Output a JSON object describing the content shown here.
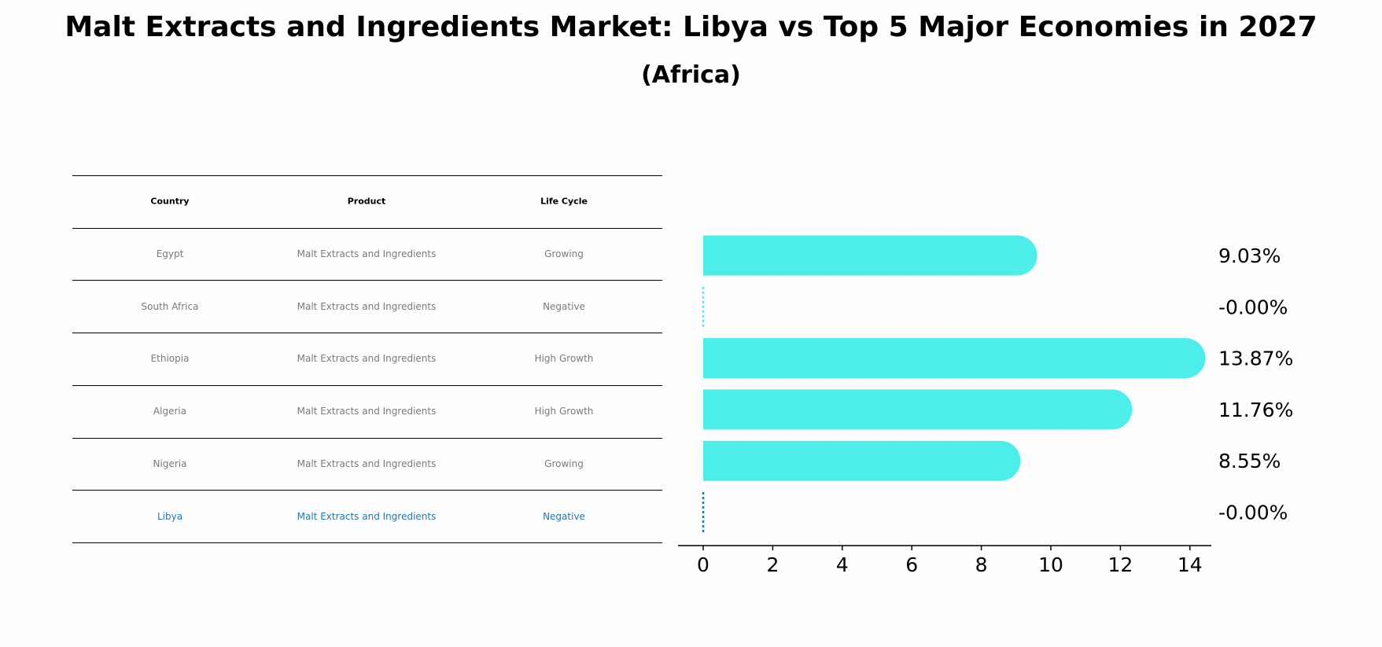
{
  "title": "Malt Extracts and Ingredients Market: Libya vs Top 5 Major Economies in 2027",
  "subtitle": "(Africa)",
  "table": {
    "headers": [
      "Country",
      "Product",
      "Life Cycle"
    ],
    "rows": [
      [
        "Egypt",
        "Malt Extracts and Ingredients",
        "Growing"
      ],
      [
        "South Africa",
        "Malt Extracts and Ingredients",
        "Negative"
      ],
      [
        "Ethiopia",
        "Malt Extracts and Ingredients",
        "High Growth"
      ],
      [
        "Algeria",
        "Malt Extracts and Ingredients",
        "High Growth"
      ],
      [
        "Nigeria",
        "Malt Extracts and Ingredients",
        "Growing"
      ],
      [
        "Libya",
        "Malt Extracts and Ingredients",
        "Negative"
      ]
    ]
  },
  "chart_data": {
    "type": "bar",
    "orientation": "horizontal",
    "categories": [
      "Egypt",
      "South Africa",
      "Ethiopia",
      "Algeria",
      "Nigeria",
      "Libya"
    ],
    "values": [
      9.03,
      -0.0,
      13.87,
      11.76,
      8.55,
      -0.0
    ],
    "value_labels": [
      "9.03%",
      "-0.00%",
      "13.87%",
      "11.76%",
      "8.55%",
      "-0.00%"
    ],
    "highlight": "Libya",
    "xlim": [
      -0.7,
      14.6
    ],
    "xticks": [
      0,
      2,
      4,
      6,
      8,
      10,
      12,
      14
    ],
    "xlabel": "",
    "ylabel": "",
    "colors": {
      "bar": "#4deeea",
      "highlight": "#1f77b4",
      "axis": "#000000"
    }
  }
}
